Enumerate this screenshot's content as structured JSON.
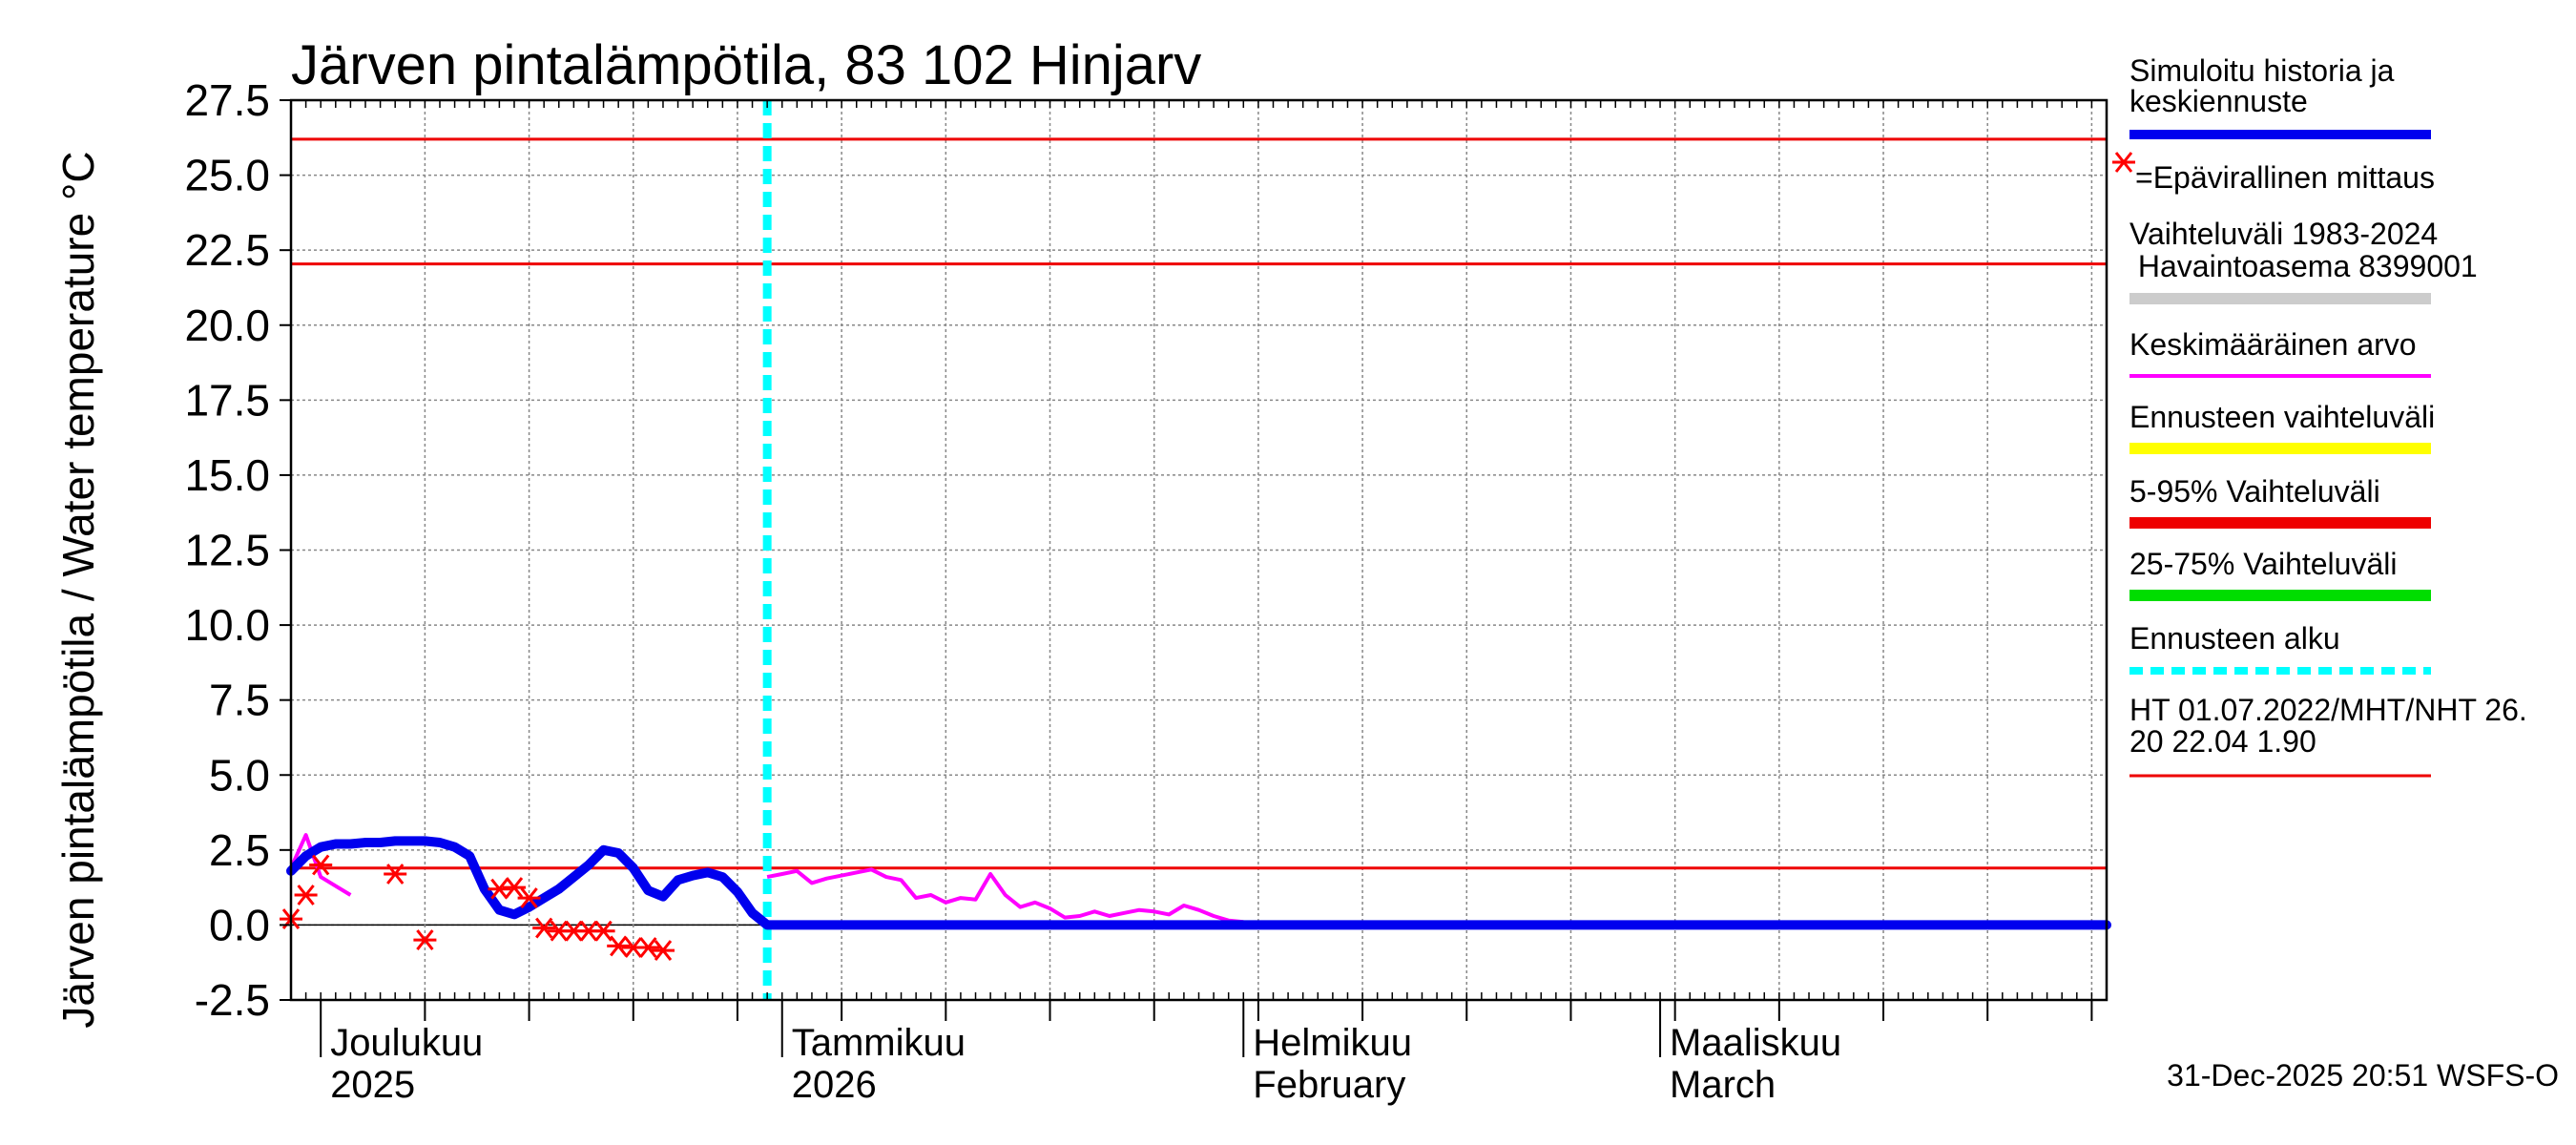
{
  "chart_data": {
    "type": "line",
    "title": "Järven pintalämpötila, 83 102 Hinjarv",
    "ylabel": "Järven pintalämpötila / Water temperature °C",
    "xlabel": "",
    "ylim": [
      -2.5,
      27.5
    ],
    "xlim": [
      "2025-11-29",
      "2026-03-31"
    ],
    "y_ticks": [
      -2.5,
      0.0,
      2.5,
      5.0,
      7.5,
      10.0,
      12.5,
      15.0,
      17.5,
      20.0,
      22.5,
      25.0,
      27.5
    ],
    "y_tick_labels": [
      "-2.5",
      "0.0",
      "2.5",
      "5.0",
      "7.5",
      "10.0",
      "12.5",
      "15.0",
      "17.5",
      "20.0",
      "22.5",
      "25.0",
      "27.5"
    ],
    "x_month_labels": [
      {
        "date": "2025-12-01",
        "line1": "Joulukuu",
        "line2": "2025"
      },
      {
        "date": "2026-01-01",
        "line1": "Tammikuu",
        "line2": "2026"
      },
      {
        "date": "2026-02-01",
        "line1": "Helmikuu",
        "line2": "February"
      },
      {
        "date": "2026-03-01",
        "line1": "Maaliskuu",
        "line2": "March"
      }
    ],
    "grid": true,
    "legend_position": "right",
    "forecast_start": "2025-12-31",
    "horizontal_lines": [
      {
        "name": "HT 01.07.2022",
        "value": 26.2,
        "color": "#ee0000"
      },
      {
        "name": "MHT",
        "value": 22.04,
        "color": "#ee0000"
      },
      {
        "name": "NHT",
        "value": 1.9,
        "color": "#ee0000"
      }
    ],
    "series": [
      {
        "name": "Simuloitu historia ja keskiennuste",
        "color": "#0000ee",
        "points": [
          [
            "2025-11-29",
            1.8
          ],
          [
            "2025-11-30",
            2.3
          ],
          [
            "2025-12-01",
            2.6
          ],
          [
            "2025-12-02",
            2.7
          ],
          [
            "2025-12-03",
            2.7
          ],
          [
            "2025-12-04",
            2.75
          ],
          [
            "2025-12-05",
            2.75
          ],
          [
            "2025-12-06",
            2.8
          ],
          [
            "2025-12-07",
            2.8
          ],
          [
            "2025-12-08",
            2.8
          ],
          [
            "2025-12-09",
            2.75
          ],
          [
            "2025-12-10",
            2.6
          ],
          [
            "2025-12-11",
            2.3
          ],
          [
            "2025-12-12",
            1.2
          ],
          [
            "2025-12-13",
            0.5
          ],
          [
            "2025-12-14",
            0.35
          ],
          [
            "2025-12-15",
            0.6
          ],
          [
            "2025-12-16",
            0.9
          ],
          [
            "2025-12-17",
            1.2
          ],
          [
            "2025-12-18",
            1.6
          ],
          [
            "2025-12-19",
            2.0
          ],
          [
            "2025-12-20",
            2.5
          ],
          [
            "2025-12-21",
            2.4
          ],
          [
            "2025-12-22",
            1.9
          ],
          [
            "2025-12-23",
            1.15
          ],
          [
            "2025-12-24",
            0.95
          ],
          [
            "2025-12-25",
            1.5
          ],
          [
            "2025-12-26",
            1.65
          ],
          [
            "2025-12-27",
            1.75
          ],
          [
            "2025-12-28",
            1.6
          ],
          [
            "2025-12-29",
            1.1
          ],
          [
            "2025-12-30",
            0.4
          ],
          [
            "2025-12-31",
            0.0
          ],
          [
            "2026-01-15",
            0.0
          ],
          [
            "2026-02-01",
            0.0
          ],
          [
            "2026-03-01",
            0.0
          ],
          [
            "2026-03-31",
            0.0
          ]
        ]
      },
      {
        "name": "Keskimääräinen arvo",
        "color": "#ff00ff",
        "points_history": [
          [
            "2025-11-29",
            1.9
          ],
          [
            "2025-11-30",
            3.0
          ],
          [
            "2025-12-01",
            1.6
          ],
          [
            "2025-12-02",
            1.3
          ],
          [
            "2025-12-03",
            1.0
          ]
        ],
        "points_forecast": [
          [
            "2025-12-31",
            1.6
          ],
          [
            "2026-01-01",
            1.7
          ],
          [
            "2026-01-02",
            1.8
          ],
          [
            "2026-01-03",
            1.4
          ],
          [
            "2026-01-04",
            1.55
          ],
          [
            "2026-01-05",
            1.65
          ],
          [
            "2026-01-06",
            1.75
          ],
          [
            "2026-01-07",
            1.85
          ],
          [
            "2026-01-08",
            1.6
          ],
          [
            "2026-01-09",
            1.5
          ],
          [
            "2026-01-10",
            0.9
          ],
          [
            "2026-01-11",
            1.0
          ],
          [
            "2026-01-12",
            0.75
          ],
          [
            "2026-01-13",
            0.9
          ],
          [
            "2026-01-14",
            0.85
          ],
          [
            "2026-01-15",
            1.7
          ],
          [
            "2026-01-16",
            1.0
          ],
          [
            "2026-01-17",
            0.6
          ],
          [
            "2026-01-18",
            0.75
          ],
          [
            "2026-01-19",
            0.55
          ],
          [
            "2026-01-20",
            0.25
          ],
          [
            "2026-01-21",
            0.3
          ],
          [
            "2026-01-22",
            0.45
          ],
          [
            "2026-01-23",
            0.3
          ],
          [
            "2026-01-24",
            0.4
          ],
          [
            "2026-01-25",
            0.5
          ],
          [
            "2026-01-26",
            0.45
          ],
          [
            "2026-01-27",
            0.35
          ],
          [
            "2026-01-28",
            0.65
          ],
          [
            "2026-01-29",
            0.5
          ],
          [
            "2026-01-30",
            0.3
          ],
          [
            "2026-01-31",
            0.15
          ],
          [
            "2026-02-01",
            0.1
          ]
        ]
      },
      {
        "name": "Epävirallinen mittaus",
        "color": "#ff0000",
        "marker": "asterisk",
        "points": [
          [
            "2025-11-29",
            0.2
          ],
          [
            "2025-11-30",
            1.0
          ],
          [
            "2025-12-01",
            2.0
          ],
          [
            "2025-12-06",
            1.7
          ],
          [
            "2025-12-08",
            -0.5
          ],
          [
            "2025-12-13",
            1.2
          ],
          [
            "2025-12-14",
            1.25
          ],
          [
            "2025-12-15",
            0.9
          ],
          [
            "2025-12-16",
            -0.1
          ],
          [
            "2025-12-17",
            -0.2
          ],
          [
            "2025-12-18",
            -0.2
          ],
          [
            "2025-12-19",
            -0.2
          ],
          [
            "2025-12-20",
            -0.2
          ],
          [
            "2025-12-21",
            -0.7
          ],
          [
            "2025-12-22",
            -0.75
          ],
          [
            "2025-12-23",
            -0.75
          ],
          [
            "2025-12-24",
            -0.85
          ]
        ]
      }
    ],
    "legend": [
      {
        "label": "Simuloitu historia ja keskiennuste",
        "color": "#0000ee",
        "style": "thick"
      },
      {
        "label": "=Epävirallinen mittaus",
        "color": "#ff0000",
        "style": "asterisk"
      },
      {
        "label": "Vaihteluväli 1983-2024 Havaintoasema 8399001",
        "color": "#cccccc",
        "style": "thick"
      },
      {
        "label": "Keskimääräinen arvo",
        "color": "#ff00ff",
        "style": "thin"
      },
      {
        "label": "Ennusteen vaihteluväli",
        "color": "#ffff00",
        "style": "thick"
      },
      {
        "label": "5-95% Vaihteluväli",
        "color": "#ee0000",
        "style": "thick"
      },
      {
        "label": "25-75% Vaihteluväli",
        "color": "#00dd00",
        "style": "thick"
      },
      {
        "label": "Ennusteen alku",
        "color": "#00ffff",
        "style": "dashed"
      },
      {
        "label": "HT 01.07.2022/MHT/NHT 26.20 22.04 1.90",
        "color": "#ee0000",
        "style": "thin"
      }
    ]
  },
  "legend_text": {
    "sim_line1": "Simuloitu historia ja",
    "sim_line2": "keskiennuste",
    "meas": "=Epävirallinen mittaus",
    "range_line1": "Vaihteluväli 1983-2024",
    "range_line2": " Havaintoasema 8399001",
    "mean": "Keskimääräinen arvo",
    "fc_range": "Ennusteen vaihteluväli",
    "p595": "5-95% Vaihteluväli",
    "p2575": "25-75% Vaihteluväli",
    "fc_start": "Ennusteen alku",
    "ht_line1": "HT 01.07.2022/MHT/NHT 26.",
    "ht_line2": "20 22.04 1.90"
  },
  "footer": "31-Dec-2025 20:51 WSFS-O"
}
